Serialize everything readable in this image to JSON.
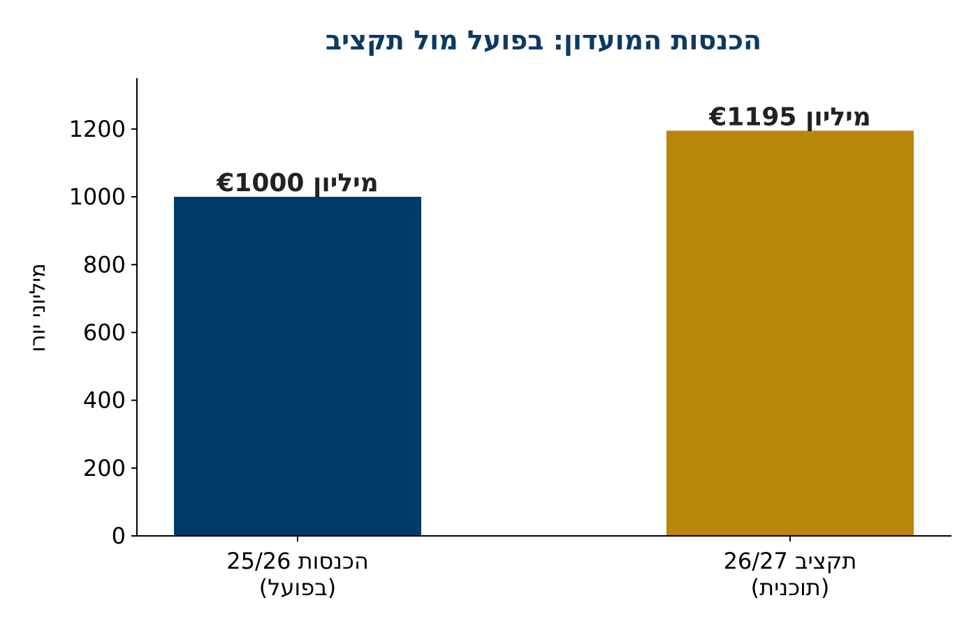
{
  "chart_data": {
    "type": "bar",
    "title": "הכנסות המועדון: בפועל מול תקציב",
    "ylabel": "מיליוני יורו",
    "xlabel": "",
    "ylim": [
      0,
      1350
    ],
    "yticks": [
      0,
      200,
      400,
      600,
      800,
      1000,
      1200
    ],
    "categories": [
      [
        "הכנסות 25/26",
        "(בפועל)"
      ],
      [
        "תקציב 26/27",
        "(תוכנית)"
      ]
    ],
    "values": [
      1000,
      1195
    ],
    "data_labels": [
      "€1000 מיליון",
      "€1195 מיליון"
    ],
    "colors": [
      "#003a69",
      "#b8860b"
    ],
    "title_color": "#0b3a66",
    "grid": false,
    "legend": "none"
  }
}
